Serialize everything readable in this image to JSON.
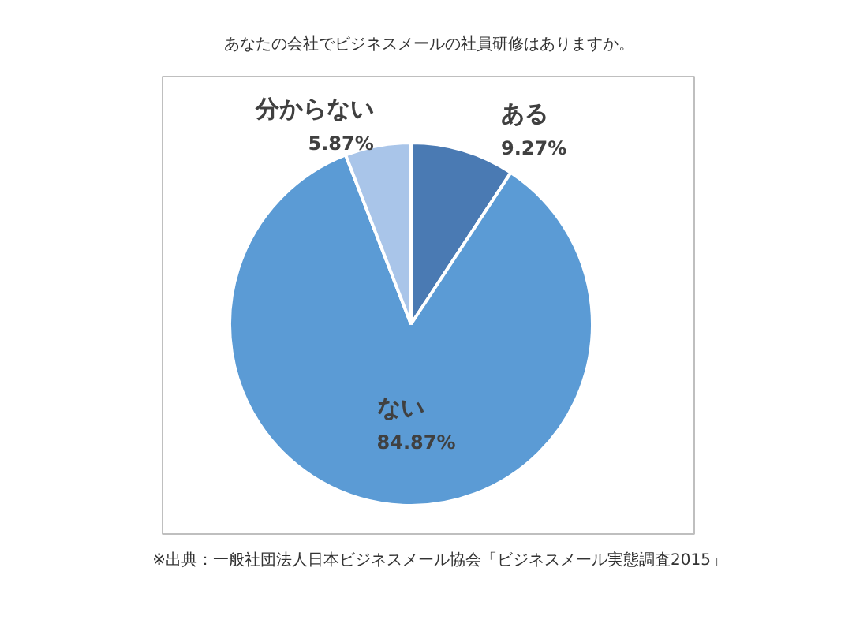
{
  "chart_data": {
    "type": "pie",
    "title": "あなたの会社でビジネスメールの社員研修はありますか。",
    "categories": [
      "ある",
      "ない",
      "分からない"
    ],
    "values": [
      9.27,
      84.87,
      5.87
    ],
    "colors": [
      "#4a7ab3",
      "#5b9bd5",
      "#a9c5e9"
    ],
    "value_labels": [
      "9.27%",
      "84.87%",
      "5.87%"
    ],
    "annotations": [
      "※出典：一般社団法人日本ビジネスメール協会「ビジネスメール実態調査2015」"
    ]
  }
}
